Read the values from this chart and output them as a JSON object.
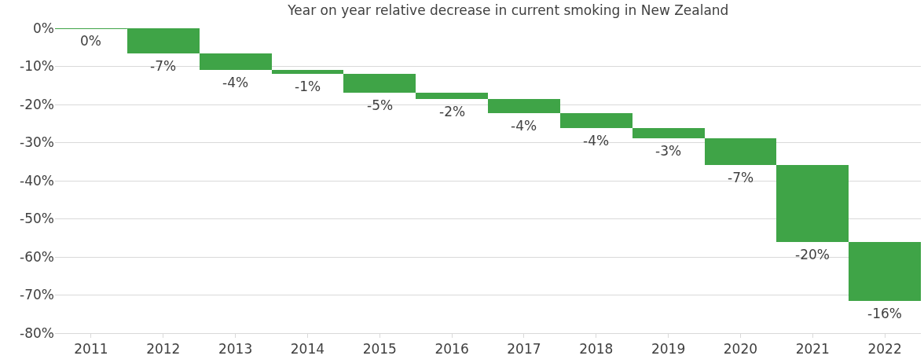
{
  "chart_data": {
    "type": "bar",
    "title": "Year on year relative decrease in current smoking in New Zealand",
    "categories": [
      "2011",
      "2012",
      "2013",
      "2014",
      "2015",
      "2016",
      "2017",
      "2018",
      "2019",
      "2020",
      "2021",
      "2022"
    ],
    "values": [
      0,
      -6.6,
      -4.4,
      -1.0,
      -4.9,
      -1.6,
      -3.8,
      -3.8,
      -2.7,
      -7.1,
      -20.1,
      -15.6
    ],
    "base": [
      null,
      0,
      -6.6,
      -11.0,
      -12.0,
      -16.9,
      -18.5,
      -22.3,
      -26.1,
      -28.8,
      -35.9,
      -56.0
    ],
    "value_labels": [
      "0%",
      "-7%",
      "-4%",
      "-1%",
      "-5%",
      "-2%",
      "-4%",
      "-4%",
      "-3%",
      "-7%",
      "-20%",
      "-16%"
    ],
    "color": "#3fa447",
    "ylim": [
      -80,
      0
    ],
    "yticks": [
      {
        "value": 0,
        "label": "0%"
      },
      {
        "value": -10,
        "label": "-10%"
      },
      {
        "value": -20,
        "label": "-20%"
      },
      {
        "value": -30,
        "label": "-30%"
      },
      {
        "value": -40,
        "label": "-40%"
      },
      {
        "value": -50,
        "label": "-50%"
      },
      {
        "value": -60,
        "label": "-60%"
      },
      {
        "value": -70,
        "label": "-70%"
      },
      {
        "value": -80,
        "label": "-80%"
      }
    ],
    "grid": "y"
  }
}
